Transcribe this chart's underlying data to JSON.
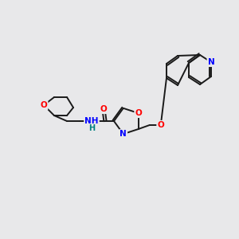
{
  "bg_color": "#e8e8ea",
  "bond_color": "#1a1a1a",
  "atom_colors": {
    "O": "#ff0000",
    "N": "#0000ff",
    "H": "#008080",
    "C": "#1a1a1a"
  },
  "font_size": 7.5,
  "lw": 1.4
}
